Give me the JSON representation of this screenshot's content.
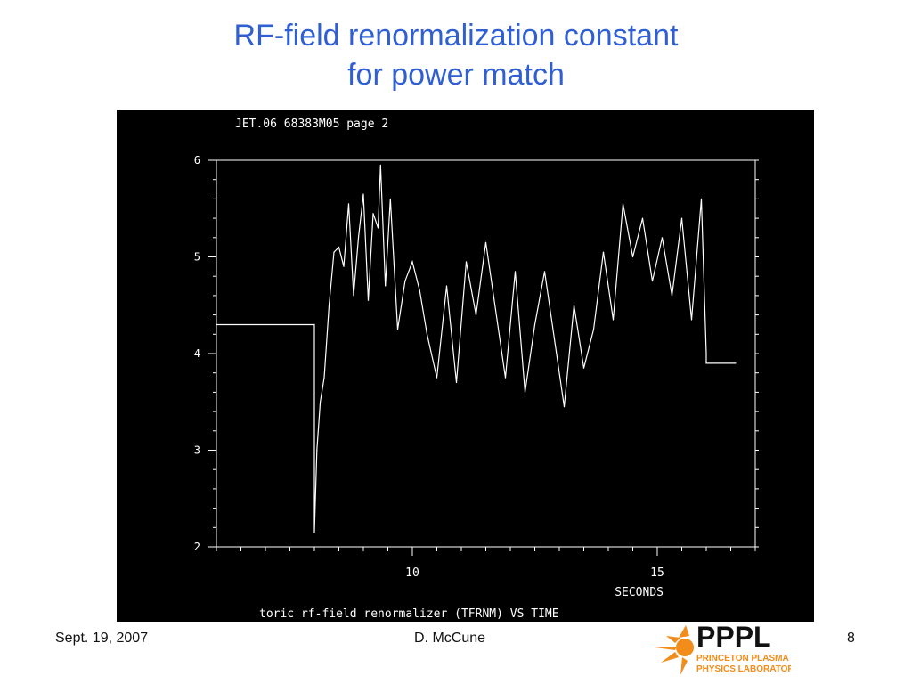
{
  "slide": {
    "title_line1": "RF-field renormalization constant",
    "title_line2": "for power match",
    "footer_date": "Sept. 19, 2007",
    "footer_author": "D. McCune",
    "footer_page": "8",
    "logo": {
      "text_main": "PPPL",
      "text_sub1": "PRINCETON PLASMA",
      "text_sub2": "PHYSICS LABORATORY",
      "colors": {
        "main": "#111111",
        "accent": "#f28c1a"
      }
    }
  },
  "colors": {
    "title": "#2f5fd3",
    "plot_bg": "#000000",
    "plot_fg": "#ffffff"
  },
  "chart_data": {
    "type": "line",
    "header": "JET.06 68383M05 page 2",
    "xlabel": "SECONDS",
    "footer_label": "toric rf-field renormalizer (TFRNM) VS TIME",
    "xlim": [
      6.0,
      17.0
    ],
    "ylim": [
      2.0,
      6.0
    ],
    "x_ticks": [
      10,
      15
    ],
    "y_ticks": [
      2,
      3,
      4,
      5,
      6
    ],
    "grid": false,
    "series": [
      {
        "x": [
          6.0,
          8.0,
          8.0,
          8.05,
          8.12,
          8.2,
          8.3,
          8.4,
          8.5,
          8.6,
          8.7,
          8.8,
          8.9,
          9.0,
          9.1,
          9.2,
          9.3,
          9.35,
          9.45,
          9.55,
          9.7,
          9.85,
          10.0,
          10.15,
          10.3,
          10.5,
          10.7,
          10.9,
          11.1,
          11.3,
          11.5,
          11.7,
          11.9,
          12.1,
          12.3,
          12.5,
          12.7,
          12.9,
          13.1,
          13.3,
          13.5,
          13.7,
          13.9,
          14.1,
          14.3,
          14.5,
          14.7,
          14.9,
          15.1,
          15.3,
          15.5,
          15.7,
          15.9,
          16.0,
          16.0,
          16.6
        ],
        "y": [
          4.3,
          4.3,
          2.15,
          3.0,
          3.5,
          3.75,
          4.5,
          5.05,
          5.1,
          4.9,
          5.55,
          4.6,
          5.2,
          5.65,
          4.55,
          5.45,
          5.3,
          5.95,
          4.7,
          5.6,
          4.25,
          4.75,
          4.95,
          4.65,
          4.2,
          3.75,
          4.7,
          3.7,
          4.95,
          4.4,
          5.15,
          4.45,
          3.75,
          4.85,
          3.6,
          4.3,
          4.85,
          4.15,
          3.45,
          4.5,
          3.85,
          4.25,
          5.05,
          4.35,
          5.55,
          5.0,
          5.4,
          4.75,
          5.2,
          4.6,
          5.4,
          4.35,
          5.6,
          4.0,
          3.9,
          3.9
        ]
      }
    ]
  }
}
